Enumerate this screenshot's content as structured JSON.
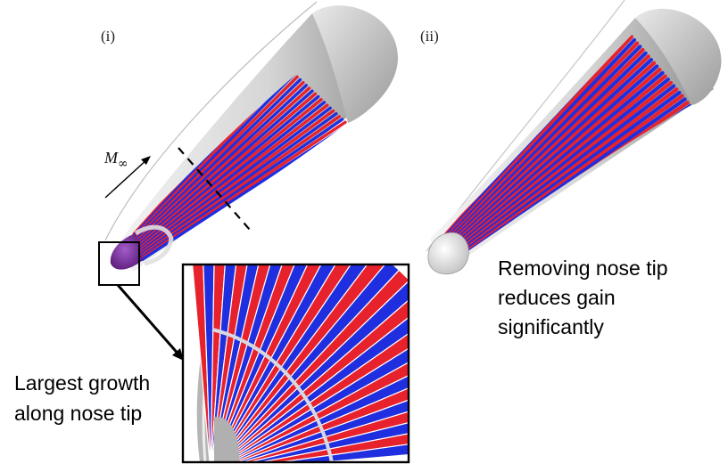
{
  "panels": [
    {
      "label": "(i)"
    },
    {
      "label": "(ii)"
    }
  ],
  "freestream": {
    "symbol": "M",
    "subscript": "∞"
  },
  "captions": {
    "removed_tip": [
      "Removing nose tip",
      "reduces gain",
      "significantly"
    ],
    "nose_growth": [
      "Largest growth",
      "along nose tip"
    ]
  },
  "colors": {
    "streak_red": "#e8222c",
    "streak_blue": "#1f2fe0",
    "cone_gray": "#b8b8b8",
    "nose_purple": "#7a2a9a"
  }
}
